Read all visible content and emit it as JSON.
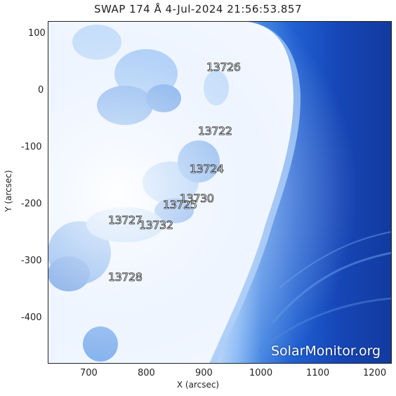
{
  "title": "SWAP 174 Å  4-Jul-2024 21:56:53.857",
  "axes": {
    "xlabel": "X (arcsec)",
    "ylabel": "Y (arcsec)",
    "x_ticks": [
      "700",
      "800",
      "900",
      "1000",
      "1100",
      "1200"
    ],
    "y_ticks": [
      "100",
      "0",
      "-100",
      "-200",
      "-300",
      "-400"
    ]
  },
  "active_regions": [
    "13726",
    "13722",
    "13724",
    "13730",
    "13725",
    "13727",
    "13732",
    "13728"
  ],
  "watermark": "SolarMonitor.org",
  "colors": {
    "disk_bright": "#eef5ff",
    "limb": "#3a7fe0",
    "corona_dark": "#123a9e"
  }
}
